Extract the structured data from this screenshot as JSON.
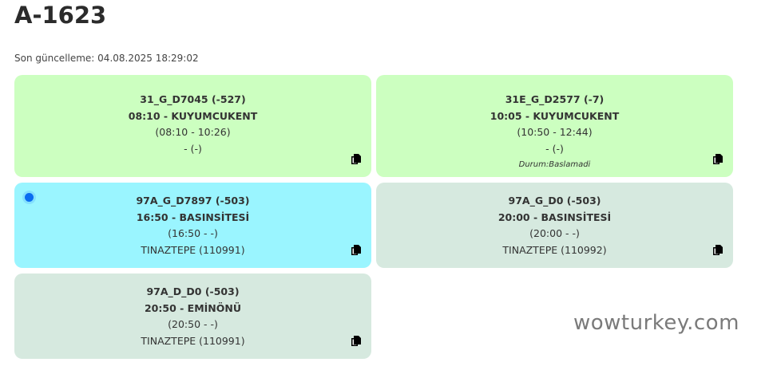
{
  "title": "A-1623",
  "updated": "Son güncelleme: 04.08.2025 18:29:02",
  "watermark": "wowturkey.com",
  "cards": [
    {
      "code": "31_G_D7045 (-527)",
      "dep": "08:10 - KUYUMCUKENT",
      "range": "(08:10 - 10:26)",
      "driver": "- (-)",
      "status": "",
      "bg": "#ccffc0",
      "active": false,
      "icon": "copy-icon"
    },
    {
      "code": "31E_G_D2577 (-7)",
      "dep": "10:05 - KUYUMCUKENT",
      "range": "(10:50 - 12:44)",
      "driver": "- (-)",
      "status": "Durum:Baslamadi",
      "bg": "#ccffc0",
      "active": false,
      "icon": "copy-icon"
    },
    {
      "code": "97A_G_D7897 (-503)",
      "dep": "16:50 - BASINSİTESİ",
      "range": "(16:50 - -)",
      "driver": "TINAZTEPE (110991)",
      "status": "",
      "bg": "#9af5ff",
      "active": true,
      "icon": "copy-icon"
    },
    {
      "code": "97A_G_D0 (-503)",
      "dep": "20:00 - BASINSİTESİ",
      "range": "(20:00 - -)",
      "driver": "TINAZTEPE (110992)",
      "status": "",
      "bg": "#d6e9df",
      "active": false,
      "icon": "copy-icon"
    },
    {
      "code": "97A_D_D0 (-503)",
      "dep": "20:50 - EMİNÖNÜ",
      "range": "(20:50 - -)",
      "driver": "TINAZTEPE (110991)",
      "status": "",
      "bg": "#d6e9df",
      "active": false,
      "icon": "copy-icon"
    }
  ]
}
